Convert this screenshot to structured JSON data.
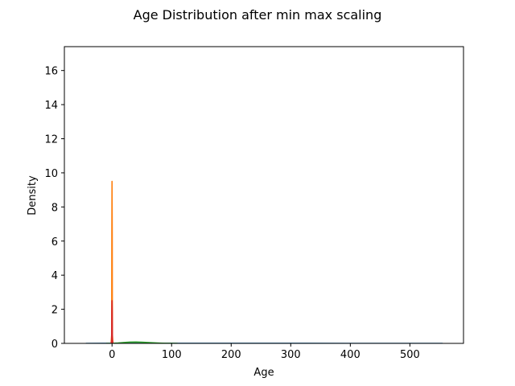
{
  "chart_data": {
    "type": "line",
    "title": "Age Distribution after min max scaling",
    "xlabel": "Age",
    "ylabel": "Density",
    "xlim": [
      -80,
      590
    ],
    "ylim": [
      0,
      17.4
    ],
    "x_ticks": [
      0,
      100,
      200,
      300,
      400,
      500
    ],
    "x_tick_labels": [
      "0",
      "100",
      "200",
      "300",
      "400",
      "500"
    ],
    "y_ticks": [
      0,
      2,
      4,
      6,
      8,
      10,
      12,
      14,
      16
    ],
    "y_tick_labels": [
      "0",
      "2",
      "4",
      "6",
      "8",
      "10",
      "12",
      "14",
      "16"
    ],
    "grid": false,
    "legend": "none",
    "series": [
      {
        "color": "#1f77b4",
        "x": [
          -44,
          0,
          50,
          100,
          200,
          300,
          400,
          500,
          555
        ],
        "y": [
          0.0003,
          0.0008,
          0.0012,
          0.001,
          0.0009,
          0.0008,
          0.0007,
          0.0005,
          0.0002
        ]
      },
      {
        "color": "#ff7f0e",
        "x": [
          -1.5,
          -0.6,
          -0.3,
          0,
          0.3,
          0.6,
          1.5
        ],
        "y": [
          0,
          0.5,
          6.5,
          9.5,
          6.5,
          0.5,
          0
        ]
      },
      {
        "color": "#2ca02c",
        "x": [
          -10,
          0,
          10,
          20,
          30,
          40,
          50,
          60,
          70,
          80,
          90,
          100,
          110
        ],
        "y": [
          0,
          0.004,
          0.02,
          0.05,
          0.075,
          0.08,
          0.07,
          0.05,
          0.03,
          0.015,
          0.006,
          0.002,
          0
        ]
      },
      {
        "color": "#d62728",
        "x": [
          -1.5,
          -0.6,
          -0.3,
          0,
          0.3,
          0.6,
          1.5
        ],
        "y": [
          0,
          0.2,
          1.8,
          2.5,
          1.8,
          0.2,
          0
        ]
      }
    ]
  }
}
